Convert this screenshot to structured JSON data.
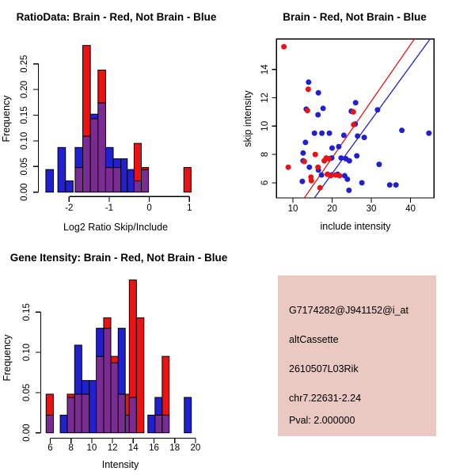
{
  "colors": {
    "red": "#ea1212",
    "blue": "#2020d0",
    "overlap_purple": "#7a2c92",
    "axis_black": "#000000",
    "info_bg": "#e9c9c1",
    "pval_red": "#c03030"
  },
  "chart_data": [
    {
      "type": "bar",
      "subtype": "overlaid-histogram",
      "title": "RatioData: Brain - Red, Not Brain - Blue",
      "xlabel": "Log2 Ratio Skip/Include",
      "ylabel": "Frequency",
      "xlim": [
        -2.75,
        1.1
      ],
      "ylim": [
        0,
        0.29
      ],
      "grid": false,
      "xticks": [
        {
          "v": -2,
          "label": "-2"
        },
        {
          "v": -1,
          "label": "-1"
        },
        {
          "v": 0,
          "label": "0"
        },
        {
          "v": 1,
          "label": "1"
        }
      ],
      "yticks": [
        {
          "v": 0,
          "label": "0.00"
        },
        {
          "v": 0.05,
          "label": "0.05"
        },
        {
          "v": 0.1,
          "label": "0.10"
        },
        {
          "v": 0.15,
          "label": "0.15"
        },
        {
          "v": 0.2,
          "label": "0.20"
        },
        {
          "v": 0.25,
          "label": "0.25"
        }
      ],
      "series_note": "red = Brain, blue = Not Brain, purple = overlap",
      "bars": [
        {
          "from": -2.58,
          "to": -2.39,
          "blue": 0.044,
          "red": 0
        },
        {
          "from": -2.28,
          "to": -2.09,
          "blue": 0.087,
          "red": 0
        },
        {
          "from": -2.09,
          "to": -1.9,
          "blue": 0.022,
          "red": 0
        },
        {
          "from": -1.85,
          "to": -1.66,
          "blue": 0.087,
          "red": 0.048
        },
        {
          "from": -1.66,
          "to": -1.47,
          "blue": 0.109,
          "red": 0.286
        },
        {
          "from": -1.47,
          "to": -1.28,
          "blue": 0.152,
          "red": 0.143
        },
        {
          "from": -1.28,
          "to": -1.09,
          "blue": 0.174,
          "red": 0.238
        },
        {
          "from": -1.09,
          "to": -0.9,
          "blue": 0.087,
          "red": 0.048
        },
        {
          "from": -0.9,
          "to": -0.71,
          "blue": 0.065,
          "red": 0.048
        },
        {
          "from": -0.71,
          "to": -0.55,
          "blue": 0.065,
          "red": 0
        },
        {
          "from": -0.55,
          "to": -0.38,
          "blue": 0.044,
          "red": 0
        },
        {
          "from": -0.38,
          "to": -0.2,
          "blue": 0.022,
          "red": 0.095
        },
        {
          "from": -0.2,
          "to": -0.02,
          "blue": 0.044,
          "red": 0.048
        },
        {
          "from": 0.86,
          "to": 1.04,
          "blue": 0,
          "red": 0.048
        }
      ]
    },
    {
      "type": "scatter",
      "title": "Brain - Red, Not Brain - Blue",
      "xlabel": "include intensity",
      "ylabel": "skip intensity",
      "xlim": [
        5.8,
        46.0
      ],
      "ylim": [
        4.9,
        16.15
      ],
      "grid": false,
      "xticks": [
        {
          "v": 10,
          "label": "10"
        },
        {
          "v": 20,
          "label": "20"
        },
        {
          "v": 30,
          "label": "30"
        },
        {
          "v": 40,
          "label": "40"
        }
      ],
      "yticks": [
        {
          "v": 6,
          "label": "6"
        },
        {
          "v": 8,
          "label": "8"
        },
        {
          "v": 10,
          "label": "10"
        },
        {
          "v": 12,
          "label": "12"
        },
        {
          "v": 14,
          "label": "14"
        }
      ],
      "red_points": [
        [
          7.7,
          15.6
        ],
        [
          13.9,
          12.6
        ],
        [
          13.7,
          11.1
        ],
        [
          25.4,
          11.0
        ],
        [
          25.5,
          10.1
        ],
        [
          8.8,
          7.1
        ],
        [
          15.7,
          8.0
        ],
        [
          12.9,
          7.5
        ],
        [
          18.5,
          7.75
        ],
        [
          19.2,
          7.7
        ],
        [
          18.0,
          7.55
        ],
        [
          16.4,
          7.1
        ],
        [
          14.6,
          6.4
        ],
        [
          18.8,
          6.6
        ],
        [
          19.6,
          6.5
        ],
        [
          20.9,
          6.55
        ],
        [
          21.9,
          6.5
        ],
        [
          14.7,
          6.15
        ],
        [
          16.9,
          5.65
        ]
      ],
      "blue_points": [
        [
          14.0,
          13.1
        ],
        [
          16.5,
          12.35
        ],
        [
          13.4,
          11.2
        ],
        [
          17.7,
          11.25
        ],
        [
          16.4,
          10.8
        ],
        [
          26.0,
          11.65
        ],
        [
          24.9,
          11.05
        ],
        [
          31.6,
          11.15
        ],
        [
          25.9,
          10.15
        ],
        [
          15.5,
          9.5
        ],
        [
          17.4,
          9.5
        ],
        [
          19.3,
          9.5
        ],
        [
          23.0,
          9.35
        ],
        [
          26.5,
          9.3
        ],
        [
          28.2,
          9.2
        ],
        [
          37.8,
          9.7
        ],
        [
          44.7,
          9.5
        ],
        [
          13.2,
          8.85
        ],
        [
          12.6,
          8.1
        ],
        [
          20.0,
          8.45
        ],
        [
          21.7,
          8.55
        ],
        [
          12.6,
          7.55
        ],
        [
          14.2,
          7.1
        ],
        [
          19.9,
          7.75
        ],
        [
          22.3,
          7.75
        ],
        [
          23.5,
          7.7
        ],
        [
          24.4,
          7.55
        ],
        [
          26.3,
          7.9
        ],
        [
          16.5,
          6.9
        ],
        [
          17.3,
          6.55
        ],
        [
          19.8,
          6.55
        ],
        [
          21.4,
          6.6
        ],
        [
          23.2,
          6.5
        ],
        [
          23.9,
          6.25
        ],
        [
          12.4,
          6.1
        ],
        [
          27.6,
          6.0
        ],
        [
          32.0,
          7.3
        ],
        [
          34.7,
          5.85
        ],
        [
          36.3,
          5.85
        ],
        [
          24.3,
          5.47
        ]
      ],
      "fit_lines": [
        {
          "color": "red",
          "x1": 12.83,
          "y1": 4.9,
          "x2": 41.0,
          "y2": 16.15
        },
        {
          "color": "blue",
          "x1": 15.39,
          "y1": 4.9,
          "x2": 45.0,
          "y2": 16.15
        }
      ]
    },
    {
      "type": "bar",
      "subtype": "overlaid-histogram",
      "title": "Gene Itensity: Brain - Red, Not Brain - Blue",
      "xlabel": "Intensity",
      "ylabel": "Frequency",
      "xlim": [
        5.5,
        20.1
      ],
      "ylim": [
        0,
        0.195
      ],
      "grid": false,
      "xticks": [
        {
          "v": 6,
          "label": "6"
        },
        {
          "v": 8,
          "label": "8"
        },
        {
          "v": 10,
          "label": "10"
        },
        {
          "v": 12,
          "label": "12"
        },
        {
          "v": 14,
          "label": "14"
        },
        {
          "v": 16,
          "label": "16"
        },
        {
          "v": 18,
          "label": "18"
        },
        {
          "v": 20,
          "label": "20"
        }
      ],
      "yticks": [
        {
          "v": 0,
          "label": "0.00"
        },
        {
          "v": 0.05,
          "label": "0.05"
        },
        {
          "v": 0.1,
          "label": "0.10"
        },
        {
          "v": 0.15,
          "label": "0.15"
        }
      ],
      "series_note": "red = Brain, blue = Not Brain, purple = overlap",
      "bars": [
        {
          "from": 5.6,
          "to": 6.3,
          "blue": 0.022,
          "red": 0.048
        },
        {
          "from": 6.96,
          "to": 7.64,
          "blue": 0.022,
          "red": 0
        },
        {
          "from": 7.64,
          "to": 8.35,
          "blue": 0.044,
          "red": 0.048
        },
        {
          "from": 8.35,
          "to": 9.04,
          "blue": 0.109,
          "red": 0.048
        },
        {
          "from": 9.04,
          "to": 9.76,
          "blue": 0.065,
          "red": 0.048
        },
        {
          "from": 9.76,
          "to": 10.44,
          "blue": 0.065,
          "red": 0
        },
        {
          "from": 10.44,
          "to": 11.15,
          "blue": 0.13,
          "red": 0.095
        },
        {
          "from": 11.15,
          "to": 11.84,
          "blue": 0.13,
          "red": 0.143
        },
        {
          "from": 11.84,
          "to": 12.55,
          "blue": 0.087,
          "red": 0.095
        },
        {
          "from": 12.55,
          "to": 13.23,
          "blue": 0.13,
          "red": 0.048
        },
        {
          "from": 13.25,
          "to": 13.62,
          "blue": 0.022,
          "red": 0.048
        },
        {
          "from": 13.62,
          "to": 14.31,
          "blue": 0.044,
          "red": 0.19
        },
        {
          "from": 14.31,
          "to": 15.03,
          "blue": 0,
          "red": 0.143
        },
        {
          "from": 15.41,
          "to": 16.1,
          "blue": 0.022,
          "red": 0
        },
        {
          "from": 16.1,
          "to": 16.79,
          "blue": 0.044,
          "red": 0.022
        },
        {
          "from": 16.79,
          "to": 17.47,
          "blue": 0.022,
          "red": 0.095
        },
        {
          "from": 18.92,
          "to": 19.6,
          "blue": 0.044,
          "red": 0
        }
      ]
    }
  ],
  "info_panel": {
    "probe_id": "G7174282@J941152@i_at",
    "event_type": "altCassette",
    "gene": "2610507L03Rik",
    "locus": "chr7.22631-2.24",
    "pval": "Pval: 2.000000"
  }
}
